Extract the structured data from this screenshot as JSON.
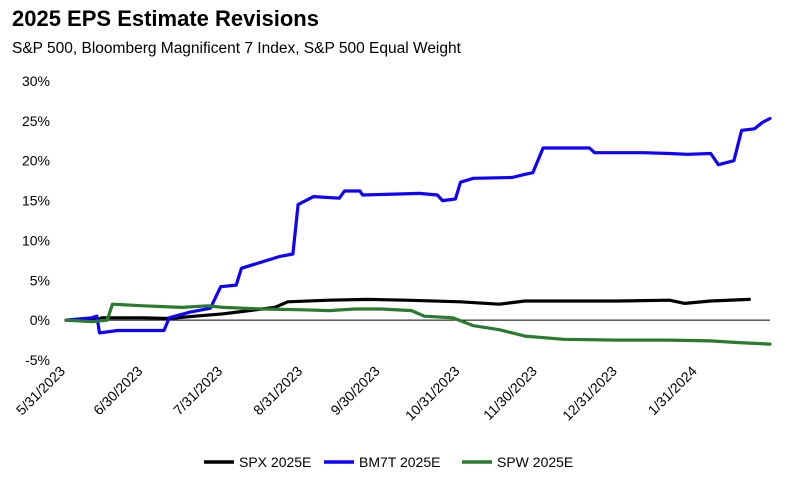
{
  "chart_data": {
    "type": "line",
    "title": "2025 EPS Estimate Revisions",
    "subtitle": "S&P 500, Bloomberg Magnificent 7 Index, S&P 500 Equal Weight",
    "xlabel": "",
    "ylabel": "",
    "x_ticks": [
      "5/31/2023",
      "6/30/2023",
      "7/31/2023",
      "8/31/2023",
      "9/30/2023",
      "10/31/2023",
      "11/30/2023",
      "12/31/2023",
      "1/31/2024"
    ],
    "y_ticks": [
      "-5%",
      "0%",
      "5%",
      "10%",
      "15%",
      "20%",
      "25%",
      "30%"
    ],
    "ylim": [
      -5,
      30
    ],
    "grid": false,
    "legend_position": "bottom",
    "series": [
      {
        "name": "SPX 2025E",
        "color": "#000000",
        "points": [
          [
            "2023-05-31",
            0
          ],
          [
            "2023-06-12",
            0
          ],
          [
            "2023-06-14",
            0.3
          ],
          [
            "2023-06-30",
            0.3
          ],
          [
            "2023-07-10",
            0.2
          ],
          [
            "2023-07-20",
            0.5
          ],
          [
            "2023-07-31",
            0.8
          ],
          [
            "2023-08-10",
            1.2
          ],
          [
            "2023-08-20",
            1.6
          ],
          [
            "2023-08-25",
            2.3
          ],
          [
            "2023-09-10",
            2.5
          ],
          [
            "2023-09-25",
            2.6
          ],
          [
            "2023-10-10",
            2.5
          ],
          [
            "2023-10-31",
            2.3
          ],
          [
            "2023-11-15",
            2.0
          ],
          [
            "2023-11-25",
            2.4
          ],
          [
            "2023-12-10",
            2.4
          ],
          [
            "2023-12-31",
            2.4
          ],
          [
            "2024-01-20",
            2.5
          ],
          [
            "2024-01-26",
            2.1
          ],
          [
            "2024-02-05",
            2.4
          ],
          [
            "2024-02-20",
            2.6
          ]
        ]
      },
      {
        "name": "BM7T 2025E",
        "color": "#0f00ff",
        "points": [
          [
            "2023-05-31",
            0
          ],
          [
            "2023-06-10",
            0.3
          ],
          [
            "2023-06-12",
            0.5
          ],
          [
            "2023-06-13",
            -1.6
          ],
          [
            "2023-06-20",
            -1.3
          ],
          [
            "2023-07-08",
            -1.3
          ],
          [
            "2023-07-10",
            0.3
          ],
          [
            "2023-07-18",
            1.0
          ],
          [
            "2023-07-26",
            1.5
          ],
          [
            "2023-07-30",
            4.2
          ],
          [
            "2023-08-05",
            4.4
          ],
          [
            "2023-08-07",
            6.5
          ],
          [
            "2023-08-12",
            7.0
          ],
          [
            "2023-08-22",
            8.0
          ],
          [
            "2023-08-27",
            8.3
          ],
          [
            "2023-08-29",
            14.5
          ],
          [
            "2023-09-01",
            15.0
          ],
          [
            "2023-09-04",
            15.5
          ],
          [
            "2023-09-14",
            15.3
          ],
          [
            "2023-09-16",
            16.2
          ],
          [
            "2023-09-22",
            16.2
          ],
          [
            "2023-09-23",
            15.7
          ],
          [
            "2023-10-15",
            15.9
          ],
          [
            "2023-10-22",
            15.7
          ],
          [
            "2023-10-24",
            15.0
          ],
          [
            "2023-10-29",
            15.2
          ],
          [
            "2023-10-31",
            17.3
          ],
          [
            "2023-11-05",
            17.8
          ],
          [
            "2023-11-20",
            17.9
          ],
          [
            "2023-11-25",
            18.3
          ],
          [
            "2023-11-28",
            18.5
          ],
          [
            "2023-12-02",
            21.6
          ],
          [
            "2023-12-20",
            21.6
          ],
          [
            "2023-12-22",
            21.0
          ],
          [
            "2024-01-10",
            21.0
          ],
          [
            "2024-01-20",
            20.9
          ],
          [
            "2024-01-27",
            20.8
          ],
          [
            "2024-02-05",
            20.9
          ],
          [
            "2024-02-08",
            19.5
          ],
          [
            "2024-02-14",
            20.0
          ],
          [
            "2024-02-17",
            23.8
          ],
          [
            "2024-02-22",
            24.0
          ],
          [
            "2024-02-25",
            24.8
          ],
          [
            "2024-02-28",
            25.3
          ]
        ]
      },
      {
        "name": "SPW 2025E",
        "color": "#2a7a30",
        "points": [
          [
            "2023-05-31",
            0
          ],
          [
            "2023-06-10",
            -0.2
          ],
          [
            "2023-06-16",
            0
          ],
          [
            "2023-06-18",
            2.0
          ],
          [
            "2023-06-30",
            1.8
          ],
          [
            "2023-07-15",
            1.6
          ],
          [
            "2023-07-25",
            1.8
          ],
          [
            "2023-07-31",
            1.6
          ],
          [
            "2023-08-15",
            1.4
          ],
          [
            "2023-08-31",
            1.3
          ],
          [
            "2023-09-10",
            1.2
          ],
          [
            "2023-09-20",
            1.4
          ],
          [
            "2023-09-30",
            1.4
          ],
          [
            "2023-10-12",
            1.2
          ],
          [
            "2023-10-17",
            0.5
          ],
          [
            "2023-10-28",
            0.3
          ],
          [
            "2023-11-05",
            -0.7
          ],
          [
            "2023-11-15",
            -1.2
          ],
          [
            "2023-11-25",
            -2.0
          ],
          [
            "2023-12-10",
            -2.4
          ],
          [
            "2023-12-31",
            -2.5
          ],
          [
            "2024-01-20",
            -2.5
          ],
          [
            "2024-02-05",
            -2.6
          ],
          [
            "2024-02-15",
            -2.8
          ],
          [
            "2024-02-28",
            -3.0
          ]
        ]
      }
    ]
  }
}
